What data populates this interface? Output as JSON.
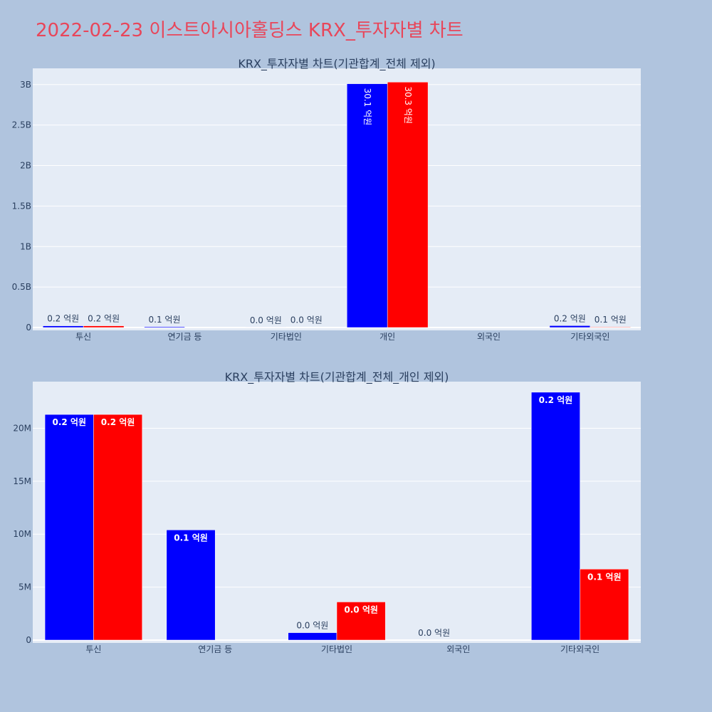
{
  "page": {
    "title": "2022-02-23 이스트아시아홀딩스 KRX_투자자별 차트"
  },
  "colors": {
    "page_bg": "#b0c4de",
    "plot_bg": "#e5ecf6",
    "grid": "#ffffff",
    "series_a": "#0000ff",
    "series_b": "#ff0000",
    "title": "#e8465a"
  },
  "chart_data": [
    {
      "type": "bar",
      "title": "KRX_투자자별 차트(기관합계_전체 제외)",
      "categories": [
        "투신",
        "연기금 등",
        "기타법인",
        "개인",
        "외국인",
        "기타외국인"
      ],
      "ylim": [
        0,
        3200000000
      ],
      "yticks": [
        0,
        500000000,
        1000000000,
        1500000000,
        2000000000,
        2500000000,
        3000000000
      ],
      "ytick_labels": [
        "0",
        "0.5B",
        "1B",
        "1.5B",
        "2B",
        "2.5B",
        "3B"
      ],
      "grid": true,
      "series": [
        {
          "color": "#0000ff",
          "values": [
            21000000,
            10300000,
            700000,
            3010000000,
            0,
            23400000
          ],
          "labels": [
            "0.2 억원",
            "0.1 억원",
            "0.0 억원",
            "30.1 억원",
            "",
            "0.2 억원"
          ]
        },
        {
          "color": "#ff0000",
          "values": [
            21000000,
            0,
            3600000,
            3030000000,
            0,
            6700000
          ],
          "labels": [
            "0.2 억원",
            "",
            "0.0 억원",
            "30.3 억원",
            "",
            "0.1 억원"
          ]
        }
      ]
    },
    {
      "type": "bar",
      "title": "KRX_투자자별 차트(기관합계_전체_개인 제외)",
      "categories": [
        "투신",
        "연기금 등",
        "기타법인",
        "외국인",
        "기타외국인"
      ],
      "ylim": [
        0,
        24400000
      ],
      "yticks": [
        0,
        5000000,
        10000000,
        15000000,
        20000000
      ],
      "ytick_labels": [
        "0",
        "5M",
        "10M",
        "15M",
        "20M"
      ],
      "grid": true,
      "series": [
        {
          "color": "#0000ff",
          "values": [
            21300000,
            10400000,
            700000,
            0,
            23400000
          ],
          "labels": [
            "0.2 억원",
            "0.1 억원",
            "0.0 억원",
            "0.0 억원",
            "0.2 억원"
          ]
        },
        {
          "color": "#ff0000",
          "values": [
            21300000,
            0,
            3600000,
            0,
            6700000
          ],
          "labels": [
            "0.2 억원",
            "",
            "0.0 억원",
            "",
            "0.1 억원"
          ]
        }
      ]
    }
  ]
}
